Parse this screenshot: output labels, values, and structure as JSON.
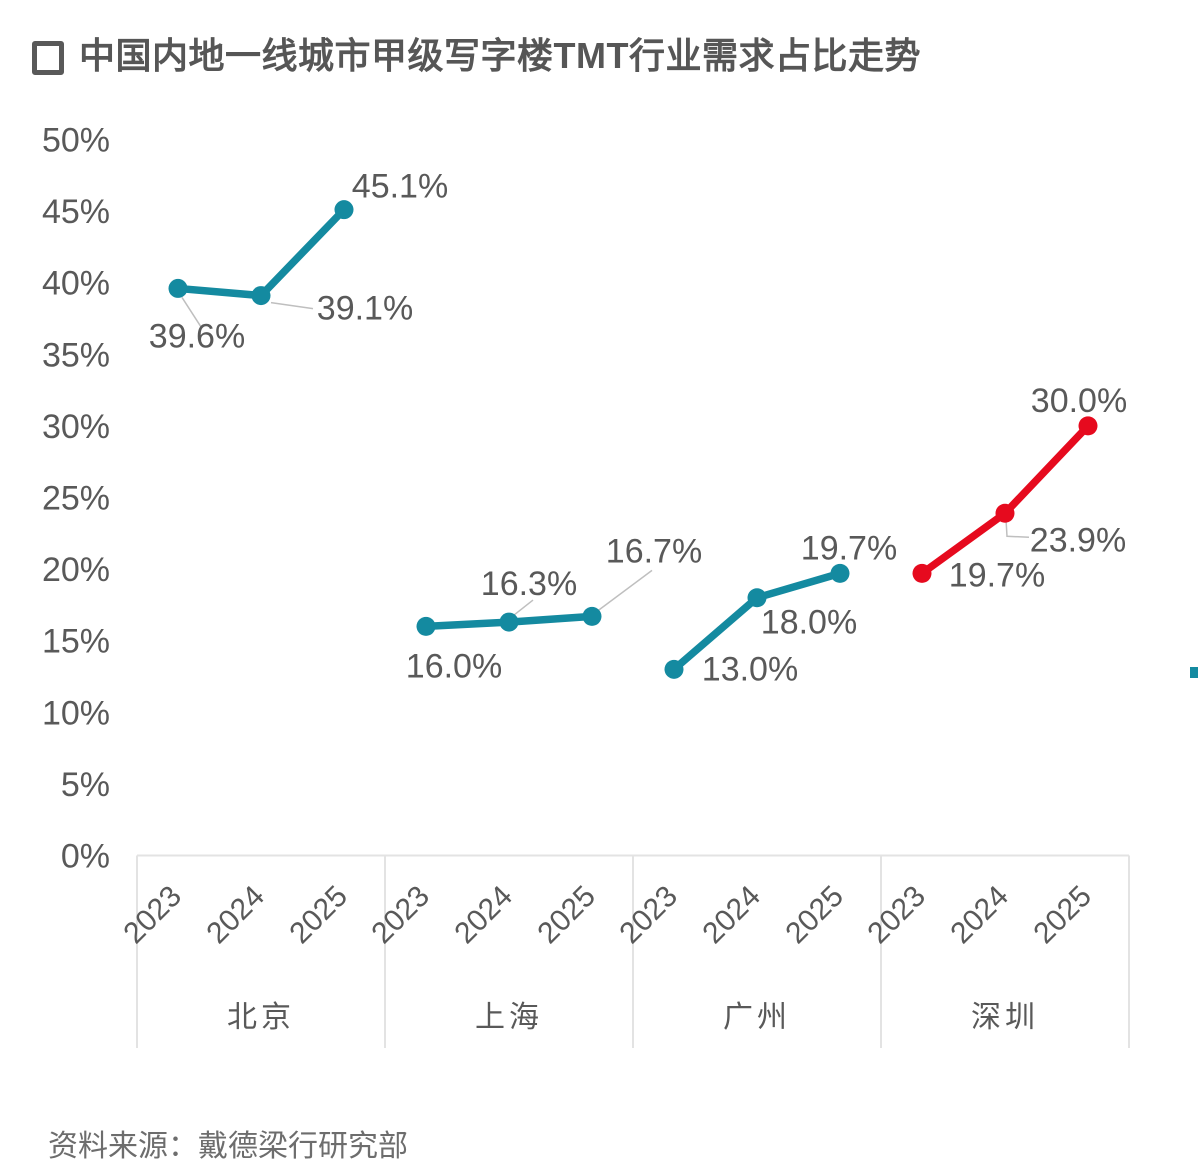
{
  "title": "中国内地一线城市甲级写字楼TMT行业需求占比走势",
  "source": "资料来源：戴德梁行研究部",
  "colors": {
    "teal": "#148AA0",
    "red": "#E60A1E",
    "label_gray": "#595959",
    "leader_gray": "#BFBFBF",
    "grid_gray": "#E3E3E3"
  },
  "chart_data": {
    "type": "line",
    "title": "中国内地一线城市甲级写字楼TMT行业需求占比走势",
    "xlabel": "",
    "ylabel": "",
    "ylim": [
      0,
      50
    ],
    "ytick_step": 5,
    "ytick_labels": [
      "0%",
      "5%",
      "10%",
      "15%",
      "20%",
      "25%",
      "30%",
      "35%",
      "40%",
      "45%",
      "50%"
    ],
    "grid": false,
    "legend_position": "none",
    "x_years": [
      "2023",
      "2024",
      "2025"
    ],
    "groups": [
      {
        "city": "北京",
        "color": "#148AA0",
        "values": [
          39.6,
          39.1,
          45.1
        ],
        "labels": [
          "39.6%",
          "39.1%",
          "45.1%"
        ]
      },
      {
        "city": "上海",
        "color": "#148AA0",
        "values": [
          16.0,
          16.3,
          16.7
        ],
        "labels": [
          "16.0%",
          "16.3%",
          "16.7%"
        ]
      },
      {
        "city": "广州",
        "color": "#148AA0",
        "values": [
          13.0,
          18.0,
          19.7
        ],
        "labels": [
          "13.0%",
          "18.0%",
          "19.7%"
        ]
      },
      {
        "city": "深圳",
        "color": "#E60A1E",
        "values": [
          19.7,
          23.9,
          30.0
        ],
        "labels": [
          "19.7%",
          "23.9%",
          "30.0%"
        ]
      }
    ]
  }
}
